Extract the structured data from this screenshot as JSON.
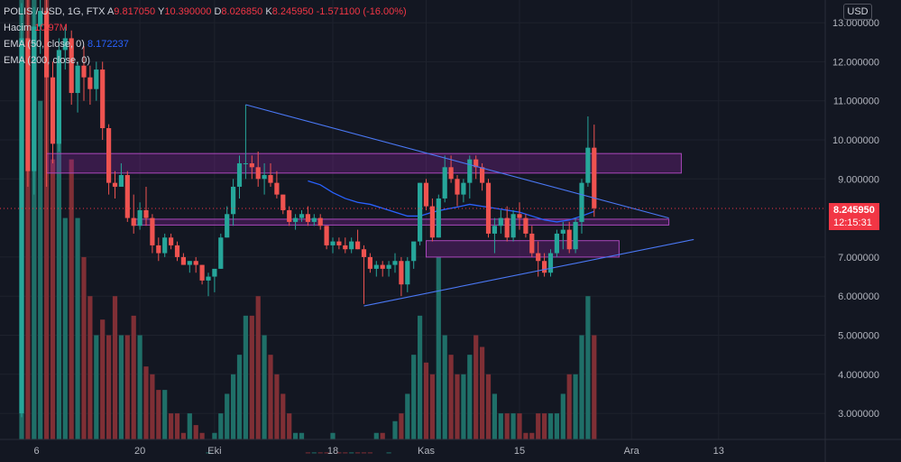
{
  "legend": {
    "symbol": "POLIS / USD, 1G, FTX",
    "open_label": "A",
    "open": "9.817050",
    "high_label": "Y",
    "high": "10.390000",
    "low_label": "D",
    "low": "8.026850",
    "close_label": "K",
    "close": "8.245950",
    "change": "-1.571100 (-16.00%)",
    "volume_label": "Hacim",
    "volume": "10.97M",
    "ema50_label": "EMA (50, close, 0)",
    "ema50_value": "8.172237",
    "ema200_label": "EMA (200, close, 0)"
  },
  "currency": "USD",
  "price_tag": {
    "price": "8.245950",
    "countdown": "12:15:31"
  },
  "colors": {
    "background": "#131722",
    "up": "#26a69a",
    "down": "#ef5350",
    "ema": "#2962ff",
    "zone": "#9c27b0"
  },
  "chart_data": {
    "type": "candlestick",
    "y_axis": {
      "ticks": [
        "13.000000",
        "12.000000",
        "11.000000",
        "10.000000",
        "9.000000",
        "7.000000",
        "6.000000",
        "5.000000",
        "4.000000",
        "3.000000"
      ],
      "ylim": [
        2.5,
        13.3
      ]
    },
    "x_axis": {
      "ticks": [
        "6",
        "20",
        "Eki",
        "18",
        "Kas",
        "15",
        "Ara",
        "13"
      ]
    },
    "candles": [
      [
        0,
        3.0,
        13.5,
        2.9,
        12.6
      ],
      [
        1,
        12.6,
        13.8,
        8.8,
        9.2
      ],
      [
        2,
        9.2,
        13.4,
        8.6,
        12.9
      ],
      [
        3,
        12.9,
        13.6,
        12.2,
        13.3
      ],
      [
        4,
        13.3,
        13.6,
        8.8,
        11.6
      ],
      [
        5,
        11.6,
        12.0,
        9.4,
        9.9
      ],
      [
        6,
        9.9,
        12.6,
        9.7,
        12.3
      ],
      [
        7,
        12.3,
        12.9,
        11.8,
        12.6
      ],
      [
        8,
        12.6,
        12.8,
        10.9,
        11.2
      ],
      [
        9,
        11.2,
        12.0,
        10.7,
        11.9
      ],
      [
        10,
        11.9,
        12.4,
        11.0,
        11.6
      ],
      [
        11,
        11.6,
        11.9,
        10.9,
        11.3
      ],
      [
        12,
        11.3,
        12.0,
        11.0,
        11.8
      ],
      [
        13,
        11.8,
        12.0,
        10.0,
        10.3
      ],
      [
        14,
        10.3,
        10.4,
        8.6,
        8.9
      ],
      [
        15,
        8.9,
        9.2,
        8.5,
        8.8
      ],
      [
        16,
        8.8,
        9.4,
        8.8,
        9.1
      ],
      [
        17,
        9.1,
        9.2,
        7.9,
        8.0
      ],
      [
        18,
        8.0,
        8.6,
        7.6,
        7.8
      ],
      [
        19,
        7.8,
        8.4,
        7.7,
        8.2
      ],
      [
        20,
        8.2,
        8.8,
        7.8,
        8.0
      ],
      [
        21,
        8.0,
        8.1,
        7.1,
        7.3
      ],
      [
        22,
        7.3,
        7.5,
        6.9,
        7.1
      ],
      [
        23,
        7.1,
        7.6,
        7.0,
        7.5
      ],
      [
        24,
        7.5,
        7.6,
        7.2,
        7.3
      ],
      [
        25,
        7.3,
        7.4,
        6.9,
        7.0
      ],
      [
        26,
        7.0,
        7.1,
        6.8,
        6.8
      ],
      [
        27,
        6.8,
        6.9,
        6.6,
        6.9
      ],
      [
        28,
        6.9,
        7.0,
        6.6,
        6.8
      ],
      [
        29,
        6.8,
        6.8,
        6.3,
        6.4
      ],
      [
        30,
        6.4,
        6.6,
        6.0,
        6.5
      ],
      [
        31,
        6.5,
        6.6,
        6.1,
        6.7
      ],
      [
        32,
        6.7,
        7.6,
        6.7,
        7.5
      ],
      [
        33,
        7.5,
        8.3,
        7.5,
        8.1
      ],
      [
        34,
        8.1,
        9.0,
        7.8,
        8.8
      ],
      [
        35,
        8.8,
        9.6,
        8.5,
        9.4
      ],
      [
        36,
        9.4,
        10.9,
        9.0,
        9.4
      ],
      [
        37,
        9.4,
        9.6,
        9.0,
        9.3
      ],
      [
        38,
        9.3,
        9.7,
        8.8,
        9.0
      ],
      [
        39,
        9.0,
        9.4,
        8.6,
        9.1
      ],
      [
        40,
        9.1,
        9.4,
        8.8,
        8.9
      ],
      [
        41,
        8.9,
        9.2,
        8.5,
        8.6
      ],
      [
        42,
        8.6,
        8.6,
        8.1,
        8.2
      ],
      [
        43,
        8.2,
        8.3,
        7.8,
        7.9
      ],
      [
        44,
        7.9,
        8.1,
        7.7,
        8.0
      ],
      [
        45,
        8.0,
        8.2,
        7.9,
        8.1
      ],
      [
        46,
        8.1,
        8.3,
        7.8,
        7.9
      ],
      [
        47,
        7.9,
        8.1,
        7.8,
        8.0
      ],
      [
        48,
        8.0,
        8.1,
        7.7,
        7.8
      ],
      [
        49,
        7.8,
        7.8,
        7.2,
        7.3
      ],
      [
        50,
        7.3,
        7.5,
        7.1,
        7.4
      ],
      [
        51,
        7.4,
        7.5,
        7.2,
        7.3
      ],
      [
        52,
        7.3,
        7.5,
        7.1,
        7.2
      ],
      [
        53,
        7.2,
        7.5,
        7.1,
        7.4
      ],
      [
        54,
        7.4,
        7.7,
        7.2,
        7.2
      ],
      [
        55,
        7.2,
        7.3,
        5.8,
        7.0
      ],
      [
        56,
        7.0,
        7.1,
        6.6,
        6.7
      ],
      [
        57,
        6.7,
        6.9,
        6.5,
        6.8
      ],
      [
        58,
        6.8,
        6.9,
        6.5,
        6.7
      ],
      [
        59,
        6.7,
        6.9,
        6.5,
        6.8
      ],
      [
        60,
        6.8,
        7.1,
        6.6,
        6.9
      ],
      [
        61,
        6.9,
        7.0,
        6.0,
        6.3
      ],
      [
        62,
        6.3,
        7.0,
        6.1,
        6.9
      ],
      [
        63,
        6.9,
        7.3,
        6.7,
        7.4
      ],
      [
        64,
        7.4,
        8.9,
        7.3,
        8.9
      ],
      [
        65,
        8.9,
        9.0,
        8.2,
        8.3
      ],
      [
        66,
        8.3,
        8.5,
        7.4,
        7.5
      ],
      [
        67,
        7.5,
        8.6,
        7.5,
        8.5
      ],
      [
        68,
        8.5,
        9.6,
        8.4,
        9.3
      ],
      [
        69,
        9.3,
        9.6,
        8.9,
        9.0
      ],
      [
        70,
        9.0,
        9.1,
        8.3,
        8.6
      ],
      [
        71,
        8.6,
        9.0,
        8.4,
        8.9
      ],
      [
        72,
        8.9,
        9.6,
        8.5,
        9.5
      ],
      [
        73,
        9.5,
        9.6,
        9.0,
        9.3
      ],
      [
        74,
        9.3,
        9.4,
        8.7,
        8.9
      ],
      [
        75,
        8.9,
        9.0,
        7.5,
        7.6
      ],
      [
        76,
        7.6,
        8.0,
        7.1,
        7.8
      ],
      [
        77,
        7.8,
        8.2,
        7.6,
        8.0
      ],
      [
        78,
        8.0,
        8.3,
        7.4,
        7.5
      ],
      [
        79,
        7.5,
        8.2,
        7.4,
        8.1
      ],
      [
        80,
        8.1,
        8.4,
        7.7,
        8.0
      ],
      [
        81,
        8.0,
        8.1,
        7.5,
        7.6
      ],
      [
        82,
        7.6,
        7.8,
        7.0,
        7.1
      ],
      [
        83,
        7.1,
        7.4,
        6.5,
        6.9
      ],
      [
        84,
        6.9,
        7.1,
        6.5,
        6.6
      ],
      [
        85,
        6.6,
        7.2,
        6.5,
        7.1
      ],
      [
        86,
        7.1,
        7.7,
        7.0,
        7.6
      ],
      [
        87,
        7.6,
        7.9,
        7.2,
        7.7
      ],
      [
        88,
        7.7,
        7.9,
        7.1,
        7.2
      ],
      [
        89,
        7.2,
        8.0,
        7.1,
        7.9
      ],
      [
        90,
        7.9,
        9.0,
        7.6,
        8.9
      ],
      [
        91,
        8.9,
        10.6,
        8.8,
        9.8
      ],
      [
        92,
        9.8,
        10.39,
        8.03,
        8.25
      ]
    ],
    "volumes": [
      25,
      19,
      20,
      11,
      15,
      9.5,
      10,
      8,
      9.5,
      8,
      7,
      6,
      5,
      5.4,
      5,
      6,
      5,
      5,
      5.5,
      5,
      4.2,
      4,
      3.6,
      3.6,
      3,
      3,
      2.5,
      3,
      2.7,
      2.5,
      2,
      2.5,
      3,
      3.5,
      4,
      4.5,
      5.5,
      5.5,
      6,
      5,
      4.5,
      4,
      3.5,
      3,
      2.5,
      2.5,
      2,
      2,
      2,
      2,
      2.5,
      2,
      2,
      2,
      2,
      2,
      2,
      2.5,
      2.5,
      2,
      2.8,
      3,
      3.5,
      4.5,
      5.5,
      4.3,
      4,
      7,
      5,
      4.5,
      4,
      4,
      4.5,
      5,
      4.7,
      4,
      3.5,
      3,
      3,
      3,
      3,
      2.5,
      2.5,
      3,
      3,
      3,
      3,
      3.5,
      4,
      4,
      5,
      6,
      5
    ],
    "ema50": [
      [
        46,
        8.95
      ],
      [
        48,
        8.85
      ],
      [
        50,
        8.65
      ],
      [
        52,
        8.5
      ],
      [
        54,
        8.4
      ],
      [
        56,
        8.35
      ],
      [
        58,
        8.25
      ],
      [
        60,
        8.15
      ],
      [
        62,
        8.05
      ],
      [
        64,
        8.05
      ],
      [
        66,
        8.15
      ],
      [
        68,
        8.22
      ],
      [
        70,
        8.28
      ],
      [
        72,
        8.35
      ],
      [
        74,
        8.3
      ],
      [
        76,
        8.25
      ],
      [
        78,
        8.2
      ],
      [
        80,
        8.15
      ],
      [
        82,
        8.05
      ],
      [
        84,
        7.95
      ],
      [
        86,
        7.9
      ],
      [
        88,
        7.95
      ],
      [
        90,
        8.05
      ],
      [
        92,
        8.17
      ]
    ],
    "trendlines": [
      {
        "from": [
          36,
          10.9
        ],
        "to": [
          104,
          8.0
        ]
      },
      {
        "from": [
          55,
          5.75
        ],
        "to": [
          108,
          7.45
        ]
      }
    ],
    "zones": [
      {
        "x": [
          4,
          106
        ],
        "y": [
          9.15,
          9.65
        ]
      },
      {
        "x": [
          18,
          104
        ],
        "y": [
          7.82,
          7.97
        ]
      },
      {
        "x": [
          65,
          96
        ],
        "y": [
          7.0,
          7.42
        ]
      }
    ],
    "current_price": 8.24595
  }
}
